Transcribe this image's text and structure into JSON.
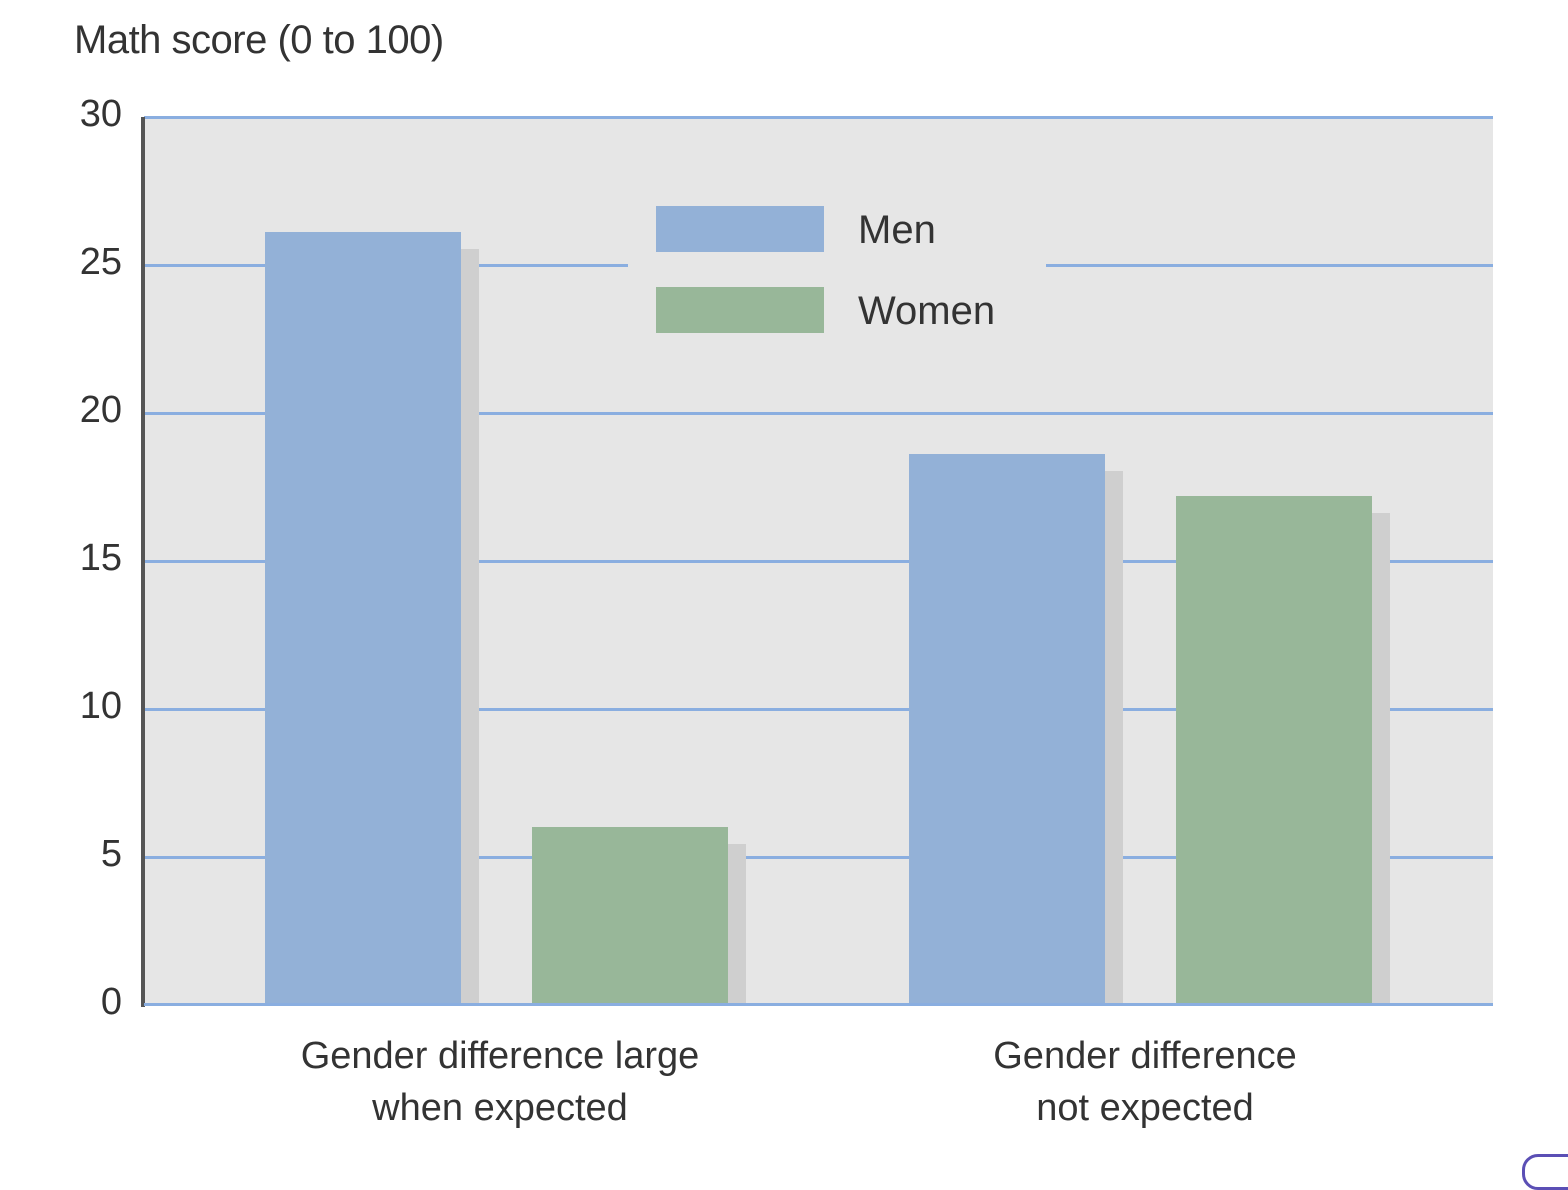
{
  "chart_data": {
    "type": "bar",
    "title": "",
    "ylabel": "Math score (0 to 100)",
    "xlabel": "",
    "ylim": [
      0,
      30
    ],
    "yticks": [
      0,
      5,
      10,
      15,
      20,
      25,
      30
    ],
    "grid": true,
    "legend_position": "top-center",
    "categories": [
      "Gender difference large when expected",
      "Gender difference not expected"
    ],
    "category_lines": [
      [
        "Gender difference large",
        "when expected"
      ],
      [
        "Gender difference",
        "not expected"
      ]
    ],
    "series": [
      {
        "name": "Men",
        "color": "#93b1d7",
        "values": [
          26.1,
          18.6
        ]
      },
      {
        "name": "Women",
        "color": "#98b799",
        "values": [
          6.0,
          17.2
        ]
      }
    ]
  },
  "labels": {
    "ylabel": "Math score (0 to 100)",
    "ticks": [
      "0",
      "5",
      "10",
      "15",
      "20",
      "25",
      "30"
    ],
    "legend": [
      "Men",
      "Women"
    ],
    "cat1_line1": "Gender difference large",
    "cat1_line2": "when expected",
    "cat2_line1": "Gender difference",
    "cat2_line2": "not expected"
  }
}
